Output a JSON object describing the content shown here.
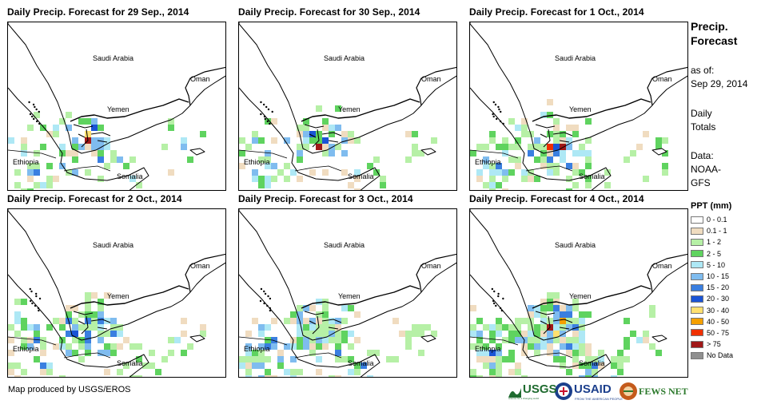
{
  "panels": [
    {
      "title": "Daily Precip. Forecast for 29 Sep., 2014",
      "day": 0
    },
    {
      "title": "Daily Precip. Forecast for 30 Sep., 2014",
      "day": 1
    },
    {
      "title": "Daily Precip. Forecast for 1 Oct., 2014",
      "day": 2
    },
    {
      "title": "Daily Precip. Forecast for 2 Oct., 2014",
      "day": 3
    },
    {
      "title": "Daily Precip. Forecast for 3 Oct., 2014",
      "day": 4
    },
    {
      "title": "Daily Precip. Forecast for 4 Oct., 2014",
      "day": 5
    }
  ],
  "place_labels": {
    "saudi": "Saudi Arabia",
    "oman": "Oman",
    "yemen": "Yemen",
    "ethiopia": "Ethiopia",
    "somalia": "Somalia"
  },
  "sidebar": {
    "title_line1": "Precip.",
    "title_line2": "Forecast",
    "asof_label": "as of:",
    "asof_date": "Sep 29, 2014",
    "totals_line1": "Daily",
    "totals_line2": "Totals",
    "data_line1": "Data:",
    "data_line2": "NOAA-",
    "data_line3": "GFS"
  },
  "legend": {
    "title": "PPT (mm)",
    "items": [
      {
        "label": "0 - 0.1",
        "color": "#ffffff"
      },
      {
        "label": "0.1 - 1",
        "color": "#f0dcc0"
      },
      {
        "label": "1 - 2",
        "color": "#b6f0a6"
      },
      {
        "label": "2 - 5",
        "color": "#5fd35f"
      },
      {
        "label": "5 - 10",
        "color": "#aee8f5"
      },
      {
        "label": "10 - 15",
        "color": "#7fbcef"
      },
      {
        "label": "15 - 20",
        "color": "#3a7fe0"
      },
      {
        "label": "20 - 30",
        "color": "#1a54d6"
      },
      {
        "label": "30 - 40",
        "color": "#ffe070"
      },
      {
        "label": "40 - 50",
        "color": "#f5a000"
      },
      {
        "label": "50 - 75",
        "color": "#f03000"
      },
      {
        "label": "> 75",
        "color": "#a01818"
      },
      {
        "label": "No Data",
        "color": "#909090"
      }
    ]
  },
  "credit": "Map produced by USGS/EROS",
  "logos": {
    "usgs": "USGS",
    "usgs_tagline": "science for a changing world",
    "usaid": "USAID",
    "usaid_tagline": "FROM THE AMERICAN PEOPLE",
    "fews": "FEWS NET"
  }
}
